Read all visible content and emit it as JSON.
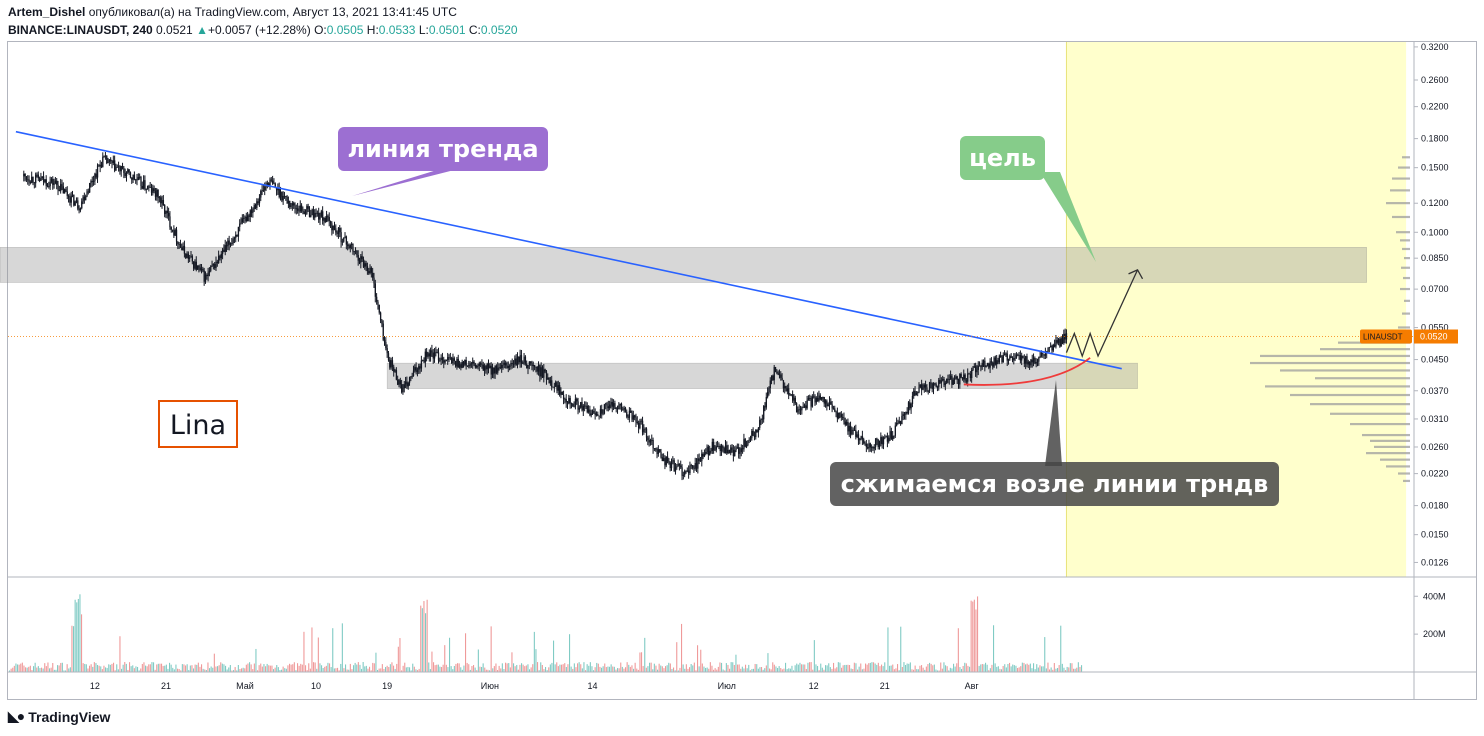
{
  "header": {
    "author": "Artem_Dishel",
    "published_text": "опубликовал(а) на TradingView.com, Август 13, 2021 13:41:45 UTC",
    "symbol": "BINANCE:LINAUSDT, 240",
    "last": "0.0521",
    "change_arrow": "▲",
    "change": "+0.0057 (+12.28%)",
    "o_label": "O:",
    "o_value": "0.0505",
    "h_label": "H:",
    "h_value": "0.0533",
    "l_label": "L:",
    "l_value": "0.0501",
    "c_label": "C:",
    "c_value": "0.0520"
  },
  "chart_data": {
    "type": "candlestick",
    "symbol": "LINAUSDT",
    "interval": "240",
    "y_scale": "log",
    "ylim": [
      0.0115,
      0.33
    ],
    "price_ticks": [
      "0.3200",
      "0.2600",
      "0.2200",
      "0.1800",
      "0.1500",
      "0.1200",
      "0.1000",
      "0.0850",
      "0.0700",
      "0.0550",
      "0.0450",
      "0.0370",
      "0.0310",
      "0.0260",
      "0.0220",
      "0.0180",
      "0.0150",
      "0.0126"
    ],
    "x_ticks": [
      "12",
      "21",
      "Май",
      "10",
      "19",
      "Июн",
      "14",
      "Июл",
      "12",
      "21",
      "Авг"
    ],
    "volume_ticks": [
      "400M",
      "200M"
    ],
    "current_price_label": {
      "symbol": "LINAUSDT",
      "price": "0.0520",
      "value": 0.052
    },
    "price_path": [
      {
        "date": "2021-04-03",
        "close": 0.142
      },
      {
        "date": "2021-04-07",
        "close": 0.136
      },
      {
        "date": "2021-04-10",
        "close": 0.118
      },
      {
        "date": "2021-04-13",
        "close": 0.158
      },
      {
        "date": "2021-04-17",
        "close": 0.14
      },
      {
        "date": "2021-04-20",
        "close": 0.126
      },
      {
        "date": "2021-04-23",
        "close": 0.09
      },
      {
        "date": "2021-04-26",
        "close": 0.075
      },
      {
        "date": "2021-04-30",
        "close": 0.1
      },
      {
        "date": "2021-05-04",
        "close": 0.138
      },
      {
        "date": "2021-05-07",
        "close": 0.118
      },
      {
        "date": "2021-05-11",
        "close": 0.11
      },
      {
        "date": "2021-05-14",
        "close": 0.093
      },
      {
        "date": "2021-05-17",
        "close": 0.078
      },
      {
        "date": "2021-05-19",
        "close": 0.046
      },
      {
        "date": "2021-05-21",
        "close": 0.037
      },
      {
        "date": "2021-05-24",
        "close": 0.047
      },
      {
        "date": "2021-05-28",
        "close": 0.044
      },
      {
        "date": "2021-06-02",
        "close": 0.042
      },
      {
        "date": "2021-06-05",
        "close": 0.045
      },
      {
        "date": "2021-06-08",
        "close": 0.041
      },
      {
        "date": "2021-06-11",
        "close": 0.035
      },
      {
        "date": "2021-06-14",
        "close": 0.032
      },
      {
        "date": "2021-06-17",
        "close": 0.034
      },
      {
        "date": "2021-06-20",
        "close": 0.03
      },
      {
        "date": "2021-06-23",
        "close": 0.024
      },
      {
        "date": "2021-06-26",
        "close": 0.022
      },
      {
        "date": "2021-06-29",
        "close": 0.026
      },
      {
        "date": "2021-07-02",
        "close": 0.025
      },
      {
        "date": "2021-07-05",
        "close": 0.029
      },
      {
        "date": "2021-07-07",
        "close": 0.042
      },
      {
        "date": "2021-07-10",
        "close": 0.033
      },
      {
        "date": "2021-07-13",
        "close": 0.036
      },
      {
        "date": "2021-07-16",
        "close": 0.03
      },
      {
        "date": "2021-07-19",
        "close": 0.026
      },
      {
        "date": "2021-07-22",
        "close": 0.028
      },
      {
        "date": "2021-07-25",
        "close": 0.037
      },
      {
        "date": "2021-07-28",
        "close": 0.039
      },
      {
        "date": "2021-07-31",
        "close": 0.04
      },
      {
        "date": "2021-08-03",
        "close": 0.044
      },
      {
        "date": "2021-08-06",
        "close": 0.046
      },
      {
        "date": "2021-08-09",
        "close": 0.044
      },
      {
        "date": "2021-08-11",
        "close": 0.048
      },
      {
        "date": "2021-08-13",
        "close": 0.052
      }
    ],
    "zones": [
      {
        "name": "upper-resistance-zone",
        "from_date": "2021-03-31",
        "to_date": "2021-09-20",
        "low": 0.073,
        "high": 0.091
      },
      {
        "name": "support-zone",
        "from_date": "2021-05-19",
        "to_date": "2021-08-22",
        "low": 0.0375,
        "high": 0.044
      }
    ],
    "trendline": {
      "from": {
        "date": "2021-04-02",
        "price": 0.188
      },
      "to": {
        "date": "2021-08-20",
        "price": 0.0425
      }
    },
    "highlight_period": {
      "from_date": "2021-08-13",
      "to_date": "2021-09-25"
    },
    "annotations": [
      {
        "text": "линия тренда",
        "color": "#9c6fd2"
      },
      {
        "text": "цель",
        "color": "#86cc8a"
      },
      {
        "text": "сжимаемся возле линии трндв",
        "color": "#555555"
      },
      {
        "text": "Lina",
        "color": "#e65100"
      }
    ],
    "colors": {
      "up": "#26a69a",
      "down": "#ef5350",
      "trendline": "#2962ff",
      "candle": "#131722",
      "price_line": "#f57c00"
    }
  },
  "footer": {
    "brand": "TradingView"
  }
}
